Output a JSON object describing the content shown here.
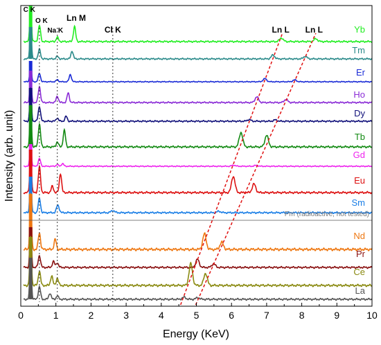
{
  "chart_data": {
    "type": "line",
    "xlabel": "Energy (KeV)",
    "ylabel": "Intensity (arb. unit)",
    "xlim": [
      0,
      10
    ],
    "x_ticks": [
      "0",
      "1",
      "2",
      "3",
      "4",
      "5",
      "6",
      "7",
      "8",
      "9",
      "10"
    ],
    "series": [
      {
        "name": "Yb",
        "color": "#22ee22",
        "peaks": [
          [
            0.28,
            1.0
          ],
          [
            0.53,
            0.45
          ],
          [
            1.04,
            0.12
          ],
          [
            1.53,
            0.42
          ],
          [
            7.42,
            0.1
          ],
          [
            8.4,
            0.08
          ]
        ]
      },
      {
        "name": "Tm",
        "color": "#2a8a8a",
        "peaks": [
          [
            0.28,
            1.0
          ],
          [
            0.53,
            0.3
          ],
          [
            1.04,
            0.08
          ],
          [
            1.46,
            0.25
          ],
          [
            7.18,
            0.12
          ],
          [
            8.1,
            0.08
          ]
        ]
      },
      {
        "name": "Er",
        "color": "#1a2bd6",
        "peaks": [
          [
            0.28,
            0.85
          ],
          [
            0.53,
            0.4
          ],
          [
            1.04,
            0.1
          ],
          [
            1.41,
            0.35
          ],
          [
            6.95,
            0.15
          ],
          [
            7.8,
            0.09
          ]
        ]
      },
      {
        "name": "Ho",
        "color": "#8a2bd6",
        "peaks": [
          [
            0.28,
            0.9
          ],
          [
            0.53,
            0.5
          ],
          [
            1.04,
            0.2
          ],
          [
            1.35,
            0.3
          ],
          [
            6.72,
            0.18
          ],
          [
            7.55,
            0.1
          ]
        ]
      },
      {
        "name": "Dy",
        "color": "#10107a",
        "peaks": [
          [
            0.28,
            1.0
          ],
          [
            0.53,
            0.45
          ],
          [
            1.04,
            0.1
          ],
          [
            1.29,
            0.15
          ],
          [
            6.5,
            0.05
          ],
          [
            7.25,
            0.04
          ]
        ]
      },
      {
        "name": "Tb",
        "color": "#138a13",
        "peaks": [
          [
            0.28,
            1.0
          ],
          [
            0.53,
            0.55
          ],
          [
            1.04,
            0.12
          ],
          [
            1.24,
            0.4
          ],
          [
            6.27,
            0.35
          ],
          [
            7.0,
            0.28
          ]
        ]
      },
      {
        "name": "Gd",
        "color": "#ee22ee",
        "peaks": [
          [
            0.28,
            1.0
          ],
          [
            0.53,
            0.35
          ],
          [
            1.04,
            0.08
          ],
          [
            1.19,
            0.12
          ],
          [
            6.06,
            0.05
          ],
          [
            6.7,
            0.04
          ]
        ]
      },
      {
        "name": "Eu",
        "color": "#dd1111",
        "peaks": [
          [
            0.28,
            1.0
          ],
          [
            0.53,
            0.6
          ],
          [
            0.9,
            0.15
          ],
          [
            1.13,
            0.45
          ],
          [
            6.05,
            0.38
          ],
          [
            6.64,
            0.2
          ]
        ]
      },
      {
        "name": "Sm",
        "color": "#1a7ee6",
        "peaks": [
          [
            0.28,
            1.0
          ],
          [
            0.53,
            0.4
          ],
          [
            1.04,
            0.15
          ],
          [
            1.08,
            0.1
          ],
          [
            2.62,
            0.06
          ],
          [
            5.64,
            0.04
          ]
        ]
      },
      {
        "name": "Nd",
        "color": "#ee7711",
        "peaks": [
          [
            0.28,
            1.0
          ],
          [
            0.53,
            0.3
          ],
          [
            0.98,
            0.18
          ],
          [
            5.23,
            0.28
          ],
          [
            5.72,
            0.13
          ]
        ]
      },
      {
        "name": "Pr",
        "color": "#8a1111",
        "peaks": [
          [
            0.28,
            1.0
          ],
          [
            0.53,
            0.3
          ],
          [
            0.93,
            0.15
          ],
          [
            1.04,
            0.12
          ],
          [
            5.03,
            0.2
          ],
          [
            5.49,
            0.09
          ]
        ]
      },
      {
        "name": "Ce",
        "color": "#8a8a11",
        "peaks": [
          [
            0.28,
            1.0
          ],
          [
            0.53,
            0.3
          ],
          [
            0.88,
            0.2
          ],
          [
            1.04,
            0.15
          ],
          [
            4.84,
            0.45
          ],
          [
            5.26,
            0.25
          ]
        ]
      },
      {
        "name": "La",
        "color": "#555555",
        "peaks": [
          [
            0.28,
            1.0
          ],
          [
            0.53,
            0.3
          ],
          [
            0.83,
            0.15
          ],
          [
            1.04,
            0.08
          ],
          [
            4.65,
            0.05
          ],
          [
            5.04,
            0.04
          ]
        ]
      }
    ],
    "pm_note": "Pm (radioactive, not tested)",
    "annotations": [
      {
        "text": "C K",
        "x": 0.28
      },
      {
        "text": "O K",
        "x": 0.53
      },
      {
        "text": "Na K",
        "x": 1.04
      },
      {
        "text": "Ln M",
        "x": 1.5
      },
      {
        "text": "Cl K",
        "x": 2.62
      },
      {
        "text": "Ln L",
        "x": 7.4
      },
      {
        "text": "Ln L",
        "x": 8.35
      }
    ],
    "vertical_refs": [
      0.53,
      1.04,
      2.62
    ],
    "grid": false,
    "legend": "labels beside each trace on the right"
  }
}
